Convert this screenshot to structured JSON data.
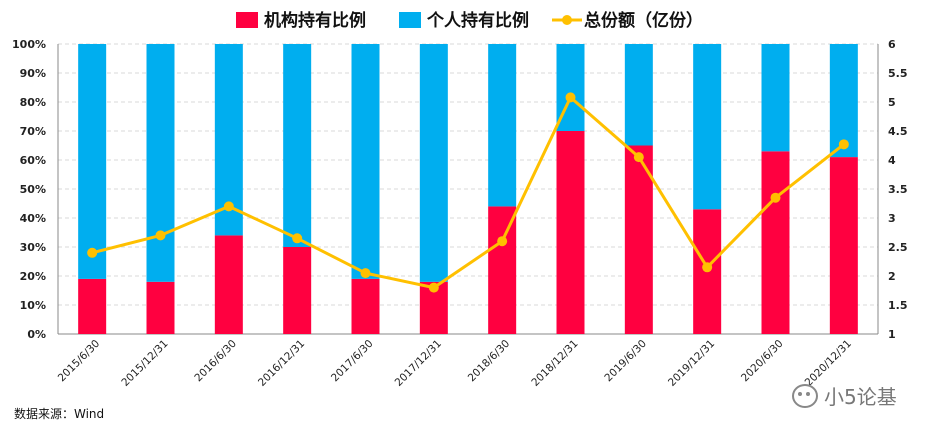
{
  "chart_data": {
    "type": "bar",
    "stacked": true,
    "title": "",
    "legend_position": "top",
    "categories": [
      "2015/6/30",
      "2015/12/31",
      "2016/6/30",
      "2016/12/31",
      "2017/6/30",
      "2017/12/31",
      "2018/6/30",
      "2018/12/31",
      "2019/6/30",
      "2019/12/31",
      "2020/6/30",
      "2020/12/31"
    ],
    "series": [
      {
        "name": "机构持有比例",
        "kind": "bar",
        "axis": "left",
        "color": "#FF0040",
        "values": [
          19,
          18,
          34,
          30,
          19,
          18,
          44,
          70,
          65,
          43,
          63,
          61
        ]
      },
      {
        "name": "个人持有比例",
        "kind": "bar",
        "axis": "left",
        "color": "#00AEEF",
        "values": [
          81,
          82,
          66,
          70,
          81,
          82,
          56,
          30,
          35,
          57,
          37,
          39
        ]
      },
      {
        "name": "总份额（亿份）",
        "kind": "line",
        "axis": "right",
        "color": "#FFC000",
        "values": [
          2.4,
          2.7,
          3.2,
          2.65,
          2.05,
          1.8,
          2.6,
          5.08,
          4.05,
          2.15,
          3.35,
          4.27
        ]
      }
    ],
    "y_left": {
      "min": 0,
      "max": 100,
      "ticks": [
        "0%",
        "10%",
        "20%",
        "30%",
        "40%",
        "50%",
        "60%",
        "70%",
        "80%",
        "90%",
        "100%"
      ]
    },
    "y_right": {
      "min": 1,
      "max": 6,
      "ticks": [
        "1",
        "1.5",
        "2",
        "2.5",
        "3",
        "3.5",
        "4",
        "4.5",
        "5",
        "5.5",
        "6"
      ]
    },
    "grid": true
  },
  "source_text": "数据来源：Wind",
  "watermark_text": "小5论基"
}
